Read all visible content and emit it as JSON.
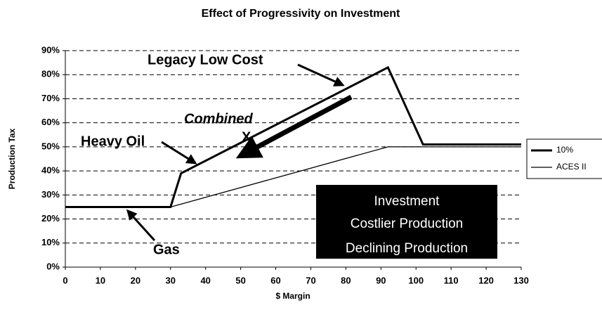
{
  "chart_data": {
    "type": "line",
    "title": "Effect of Progressivity on Investment",
    "xlabel": "$ Margin",
    "ylabel": "Production Tax",
    "x": [
      0,
      30,
      33,
      92,
      102,
      130
    ],
    "series": [
      {
        "name": "10%",
        "color": "#000000",
        "values": [
          25,
          25,
          39,
          83,
          51,
          51
        ]
      },
      {
        "name": "ACES II",
        "color": "#000000",
        "values": [
          25,
          25,
          26.2,
          50,
          50,
          50
        ]
      }
    ],
    "xlim": [
      0,
      130
    ],
    "xticks": [
      0,
      10,
      20,
      30,
      40,
      50,
      60,
      70,
      80,
      90,
      100,
      110,
      120,
      130
    ],
    "ylim": [
      0,
      90
    ],
    "yticks": [
      {
        "value": 0,
        "label": "0%"
      },
      {
        "value": 10,
        "label": "10%"
      },
      {
        "value": 20,
        "label": "20%"
      },
      {
        "value": 30,
        "label": "30%"
      },
      {
        "value": 40,
        "label": "40%"
      },
      {
        "value": 50,
        "label": "50%"
      },
      {
        "value": 60,
        "label": "60%"
      },
      {
        "value": 70,
        "label": "70%"
      },
      {
        "value": 80,
        "label": "80%"
      },
      {
        "value": 90,
        "label": "90%"
      }
    ],
    "grid": true,
    "legend": "right",
    "annotations": [
      "Legacy Low Cost",
      "Combined",
      "X",
      "Heavy Oil",
      "Gas",
      "Investment",
      "Costlier Production",
      "Declining Production"
    ]
  }
}
